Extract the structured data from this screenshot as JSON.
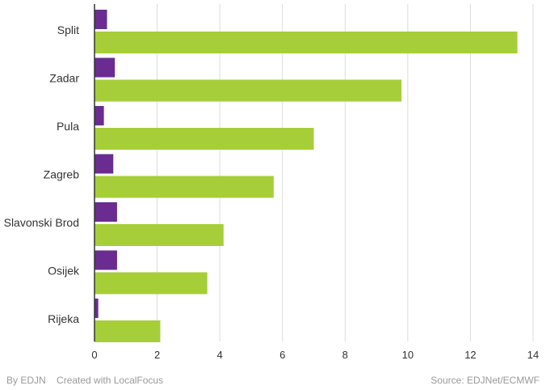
{
  "chart_data": {
    "type": "bar",
    "orientation": "horizontal",
    "categories": [
      "Split",
      "Zadar",
      "Pula",
      "Zagreb",
      "Slavonski Brod",
      "Osijek",
      "Rijeka"
    ],
    "series": [
      {
        "name": "",
        "color": "#6a2c91",
        "values": [
          0.4,
          0.65,
          0.3,
          0.6,
          0.72,
          0.72,
          0.12
        ]
      },
      {
        "name": "",
        "color": "#a6ce39",
        "values": [
          13.5,
          9.8,
          7.0,
          5.72,
          4.12,
          3.6,
          2.1
        ]
      }
    ],
    "xticks": [
      0,
      2,
      4,
      6,
      8,
      10,
      12,
      14
    ],
    "xlim": [
      0,
      14
    ],
    "grid": true,
    "title": "",
    "xlabel": "",
    "ylabel": ""
  },
  "footer": {
    "by": "By EDJN",
    "created": "Created with LocalFocus",
    "source": "Source:  EDJNet/ECMWF"
  }
}
